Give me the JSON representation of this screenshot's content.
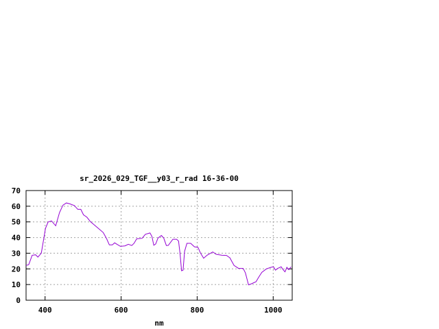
{
  "chart_data": {
    "type": "line",
    "title": "sr_2026_029_TGF__y03_r_rad 16-36-00",
    "xlabel": "nm",
    "ylabel": "",
    "xlim": [
      350,
      1050
    ],
    "ylim": [
      0,
      70
    ],
    "xticks": [
      400,
      600,
      800,
      1000
    ],
    "yticks": [
      0,
      10,
      20,
      30,
      40,
      50,
      60,
      70
    ],
    "grid": true,
    "legend": "none",
    "line_color": "#9400d3",
    "series": [
      {
        "x": [
          350,
          357,
          366,
          375,
          381,
          390,
          396,
          401,
          408,
          417,
          428,
          438,
          447,
          456,
          465,
          477,
          486,
          494,
          501,
          510,
          519,
          537,
          553,
          562,
          569,
          577,
          583,
          598,
          610,
          619,
          628,
          634,
          641,
          655,
          664,
          676,
          681,
          686,
          691,
          697,
          706,
          712,
          719,
          724,
          736,
          746,
          751,
          755,
          759,
          763,
          767,
          773,
          783,
          793,
          802,
          809,
          817,
          826,
          841,
          850,
          865,
          877,
          886,
          897,
          909,
          921,
          927,
          935,
          943,
          955,
          961,
          970,
          982,
          994,
          1001,
          1006,
          1012,
          1021,
          1026,
          1031,
          1036,
          1041,
          1047
        ],
        "y": [
          22.2,
          22.7,
          28.7,
          29,
          27.5,
          30,
          38.5,
          45.8,
          49.9,
          50.6,
          47.5,
          56,
          60.7,
          62.1,
          61.5,
          60.4,
          58,
          58,
          54.5,
          53,
          50.2,
          46.5,
          43.2,
          39.2,
          35.3,
          35.3,
          36.6,
          34.4,
          34.7,
          35.7,
          34.9,
          36.3,
          39.2,
          39.5,
          42.1,
          42.9,
          40.7,
          35.1,
          35.9,
          39.7,
          41.3,
          39.7,
          34.9,
          35,
          38.9,
          38.9,
          37.8,
          29.7,
          18.8,
          19.2,
          31.2,
          36.3,
          36.3,
          34.1,
          33.8,
          30,
          26.8,
          28.7,
          30.8,
          29.3,
          28.7,
          28.6,
          27.1,
          22.2,
          20.3,
          20.3,
          17.4,
          9.8,
          10.5,
          11.8,
          14.4,
          17.8,
          20,
          21,
          21.3,
          19.2,
          20.3,
          21.3,
          19.5,
          18.1,
          21,
          19.5,
          21.3
        ]
      }
    ]
  }
}
